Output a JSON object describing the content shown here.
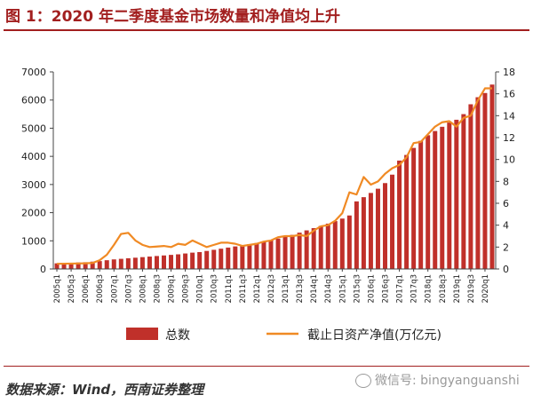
{
  "title": "图 1：2020 年二季度基金市场数量和净值均上升",
  "source": "数据来源：Wind，西南证券整理",
  "watermark": "微信号: bingyanguanshi",
  "colors": {
    "bar": "#c0302a",
    "line": "#f08a24",
    "title": "#a21f1f"
  },
  "chart_data": {
    "type": "bar",
    "title": "",
    "xlabel": "",
    "ylabel": "",
    "ylim": [
      0,
      7000
    ],
    "y2lim": [
      0,
      18
    ],
    "yticks": [
      0,
      1000,
      2000,
      3000,
      4000,
      5000,
      6000,
      7000
    ],
    "y2ticks": [
      0,
      2,
      4,
      6,
      8,
      10,
      12,
      14,
      16,
      18
    ],
    "legend_position": "bottom",
    "grid": false,
    "categories": [
      "2005q1",
      "2005q2",
      "2005q3",
      "2005q4",
      "2006q1",
      "2006q2",
      "2006q3",
      "2006q4",
      "2007q1",
      "2007q2",
      "2007q3",
      "2007q4",
      "2008q1",
      "2008q2",
      "2008q3",
      "2008q4",
      "2009q1",
      "2009q2",
      "2009q3",
      "2009q4",
      "2010q1",
      "2010q2",
      "2010q3",
      "2010q4",
      "2011q1",
      "2011q2",
      "2011q3",
      "2011q4",
      "2012q1",
      "2012q2",
      "2012q3",
      "2012q4",
      "2013q1",
      "2013q2",
      "2013q3",
      "2013q4",
      "2014q1",
      "2014q2",
      "2014q3",
      "2014q4",
      "2015q1",
      "2015q2",
      "2015q3",
      "2015q4",
      "2016q1",
      "2016q2",
      "2016q3",
      "2016q4",
      "2017q1",
      "2017q2",
      "2017q3",
      "2017q4",
      "2018q1",
      "2018q2",
      "2018q3",
      "2018q4",
      "2019q1",
      "2019q2",
      "2019q3",
      "2019q4",
      "2020q1",
      "2020q2"
    ],
    "tick_labels": [
      "2005q1",
      "2005q3",
      "2006q1",
      "2006q3",
      "2007q1",
      "2007q3",
      "2008q1",
      "2008q3",
      "2009q1",
      "2009q3",
      "2010q1",
      "2010q3",
      "2011q1",
      "2011q3",
      "2012q1",
      "2012q3",
      "2013q1",
      "2013q3",
      "2014q1",
      "2014q3",
      "2015q1",
      "2015q3",
      "2016q1",
      "2016q3",
      "2017q1",
      "2017q3",
      "2018q1",
      "2018q3",
      "2019q1",
      "2019q3",
      "2020q1"
    ],
    "series": [
      {
        "name": "总数",
        "type": "bar",
        "axis": "left",
        "values": [
          200,
          210,
          220,
          230,
          240,
          260,
          280,
          310,
          340,
          360,
          380,
          400,
          420,
          440,
          460,
          480,
          500,
          520,
          550,
          580,
          600,
          640,
          680,
          720,
          760,
          800,
          840,
          880,
          920,
          960,
          1020,
          1080,
          1140,
          1210,
          1290,
          1370,
          1450,
          1530,
          1610,
          1700,
          1790,
          1900,
          2400,
          2550,
          2700,
          2850,
          3050,
          3350,
          3850,
          4050,
          4300,
          4550,
          4750,
          4900,
          5050,
          5200,
          5300,
          5500,
          5850,
          6100,
          6250,
          6550
        ]
      },
      {
        "name": "截止日资产净值(万亿元)",
        "type": "line",
        "axis": "right",
        "values": [
          0.47,
          0.48,
          0.49,
          0.5,
          0.52,
          0.55,
          0.8,
          1.3,
          2.2,
          3.2,
          3.3,
          2.6,
          2.2,
          2.0,
          2.05,
          2.1,
          2.0,
          2.3,
          2.2,
          2.6,
          2.3,
          2.0,
          2.2,
          2.4,
          2.4,
          2.3,
          2.1,
          2.2,
          2.3,
          2.5,
          2.6,
          2.9,
          3.0,
          3.0,
          3.1,
          3.0,
          3.5,
          3.9,
          4.0,
          4.4,
          5.1,
          7.0,
          6.8,
          8.4,
          7.7,
          8.0,
          8.7,
          9.2,
          9.5,
          10.2,
          11.5,
          11.6,
          12.3,
          13.0,
          13.4,
          13.5,
          13.0,
          13.8,
          14.0,
          15.4,
          16.5,
          16.5
        ]
      }
    ]
  }
}
